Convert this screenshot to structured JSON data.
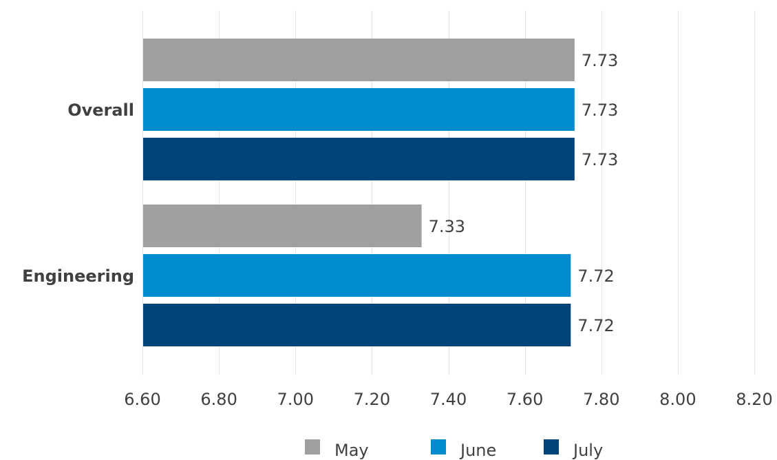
{
  "chart_data": {
    "type": "bar",
    "orientation": "horizontal",
    "title": "",
    "xlabel": "",
    "ylabel": "",
    "categories": [
      "Overall",
      "Engineering"
    ],
    "series": [
      {
        "name": "May",
        "color": "#a0a0a0",
        "values": [
          7.73,
          7.33
        ]
      },
      {
        "name": "June",
        "color": "#008ccc",
        "values": [
          7.73,
          7.72
        ]
      },
      {
        "name": "July",
        "color": "#004477",
        "values": [
          7.73,
          7.72
        ]
      }
    ],
    "value_labels": [
      [
        "7.73",
        "7.33"
      ],
      [
        "7.73",
        "7.72"
      ],
      [
        "7.73",
        "7.72"
      ]
    ],
    "xlim": [
      6.6,
      8.2
    ],
    "xticks": [
      6.6,
      6.8,
      7.0,
      7.2,
      7.4,
      7.6,
      7.8,
      8.0,
      8.2
    ],
    "xtick_labels": [
      "6.60",
      "6.80",
      "7.00",
      "7.20",
      "7.40",
      "7.60",
      "7.80",
      "8.00",
      "8.20"
    ],
    "grid": "vertical",
    "legend_position": "bottom"
  }
}
